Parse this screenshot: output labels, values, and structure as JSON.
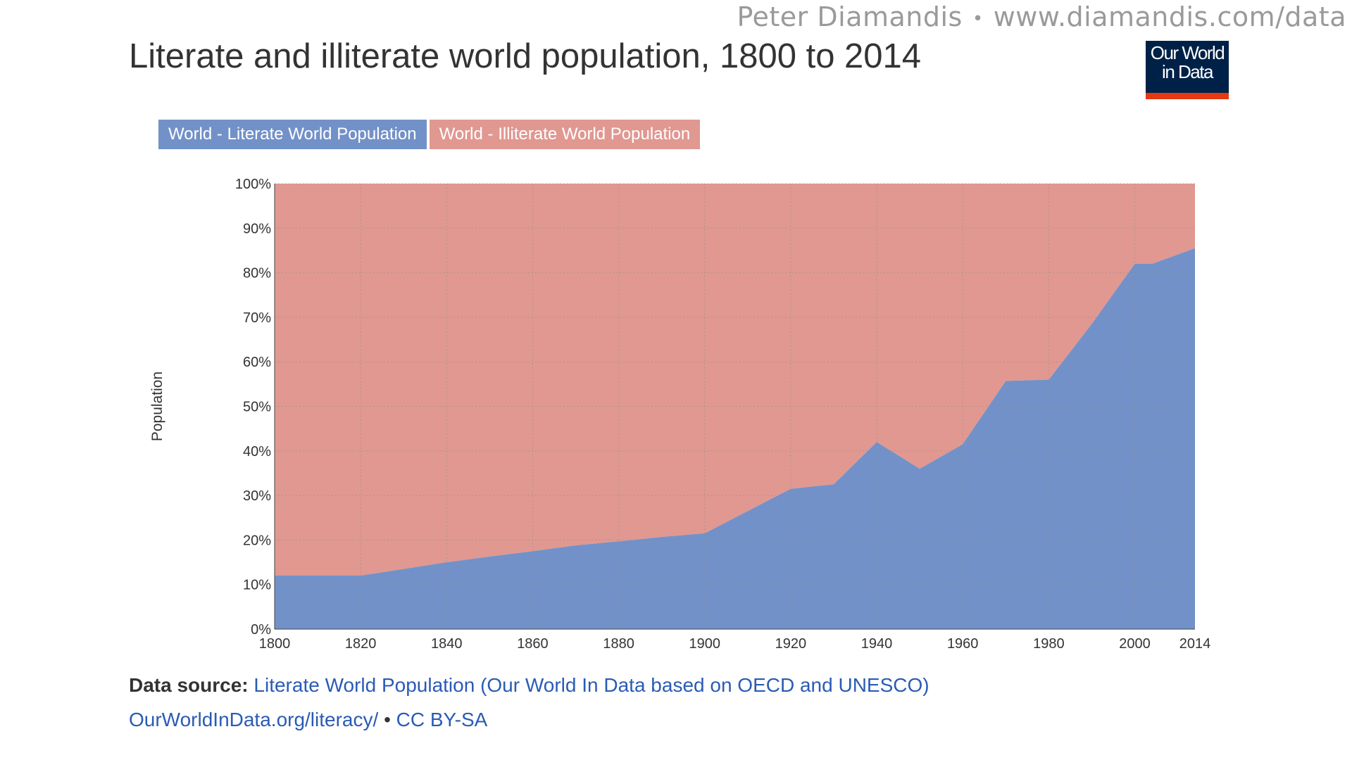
{
  "watermark": {
    "author": "Peter Diamandis",
    "separator": "•",
    "url": "www.diamandis.com/data"
  },
  "logo": {
    "line1": "Our World",
    "line2": "in Data"
  },
  "source": {
    "label": "Data source:",
    "link": "Literate World Population (Our World In Data based on OECD and UNESCO)"
  },
  "license": {
    "url": "OurWorldInData.org/literacy/",
    "separator": "•",
    "text": "CC BY-SA"
  },
  "chart_data": {
    "type": "area",
    "stacked": true,
    "percent": true,
    "title": "Literate and illiterate world population, 1800 to 2014",
    "ylabel": "Population",
    "xlabel": "",
    "xlim": [
      1800,
      2014
    ],
    "ylim": [
      0,
      100
    ],
    "x_ticks": [
      1800,
      1820,
      1840,
      1860,
      1880,
      1900,
      1920,
      1940,
      1960,
      1980,
      2000,
      2014
    ],
    "y_ticks": [
      "0%",
      "10%",
      "20%",
      "30%",
      "40%",
      "50%",
      "60%",
      "70%",
      "80%",
      "90%",
      "100%"
    ],
    "grid": true,
    "legend_placement": "top-left",
    "x": [
      1800,
      1820,
      1830,
      1840,
      1850,
      1860,
      1870,
      1880,
      1890,
      1900,
      1910,
      1920,
      1930,
      1940,
      1950,
      1960,
      1970,
      1980,
      1990,
      2000,
      2004,
      2014
    ],
    "series": [
      {
        "name": "World - Literate World Population",
        "color": "#7291c8",
        "values": [
          12,
          12,
          13.5,
          15,
          16.3,
          17.5,
          18.8,
          19.7,
          20.7,
          21.5,
          26.5,
          31.5,
          32.5,
          42,
          36,
          41.5,
          55.7,
          56,
          68.5,
          82,
          82,
          85.5
        ]
      },
      {
        "name": "World - Illiterate World Population",
        "color": "#e09891",
        "values": [
          88,
          88,
          86.5,
          85,
          83.7,
          82.5,
          81.2,
          80.3,
          79.3,
          78.5,
          73.5,
          68.5,
          67.5,
          58,
          64,
          58.5,
          44.3,
          44,
          31.5,
          18,
          18,
          14.5
        ]
      }
    ]
  }
}
